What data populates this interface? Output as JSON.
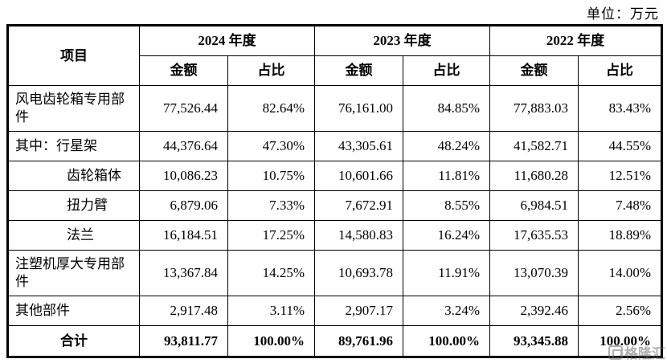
{
  "unit_label": "单位：万元",
  "table": {
    "item_header": "项目",
    "year_headers": [
      "2024 年度",
      "2023 年度",
      "2022 年度"
    ],
    "sub_headers": {
      "amount": "金额",
      "ratio": "占比"
    },
    "rows": [
      {
        "label": "风电齿轮箱专用部件",
        "indent": false,
        "total": false,
        "tall": true,
        "values": [
          "77,526.44",
          "82.64%",
          "76,161.00",
          "84.85%",
          "77,883.03",
          "83.43%"
        ]
      },
      {
        "label": "其中：行星架",
        "indent": false,
        "total": false,
        "tall": false,
        "values": [
          "44,376.64",
          "47.30%",
          "43,305.61",
          "48.24%",
          "41,582.71",
          "44.55%"
        ]
      },
      {
        "label": "齿轮箱体",
        "indent": true,
        "total": false,
        "tall": false,
        "values": [
          "10,086.23",
          "10.75%",
          "10,601.66",
          "11.81%",
          "11,680.28",
          "12.51%"
        ]
      },
      {
        "label": "扭力臂",
        "indent": true,
        "total": false,
        "tall": false,
        "values": [
          "6,879.06",
          "7.33%",
          "7,672.91",
          "8.55%",
          "6,984.51",
          "7.48%"
        ]
      },
      {
        "label": "法兰",
        "indent": true,
        "total": false,
        "tall": false,
        "values": [
          "16,184.51",
          "17.25%",
          "14,580.83",
          "16.24%",
          "17,635.53",
          "18.89%"
        ]
      },
      {
        "label": "注塑机厚大专用部件",
        "indent": false,
        "total": false,
        "tall": true,
        "values": [
          "13,367.84",
          "14.25%",
          "10,693.78",
          "11.91%",
          "13,070.39",
          "14.00%"
        ]
      },
      {
        "label": "其他部件",
        "indent": false,
        "total": false,
        "tall": false,
        "values": [
          "2,917.48",
          "3.11%",
          "2,907.17",
          "3.24%",
          "2,392.46",
          "2.56%"
        ]
      },
      {
        "label": "合计",
        "indent": false,
        "total": true,
        "tall": false,
        "values": [
          "93,811.77",
          "100.00%",
          "89,761.96",
          "100.00%",
          "93,345.88",
          "100.00%"
        ]
      }
    ]
  },
  "watermark": {
    "text": "格隆汇"
  }
}
